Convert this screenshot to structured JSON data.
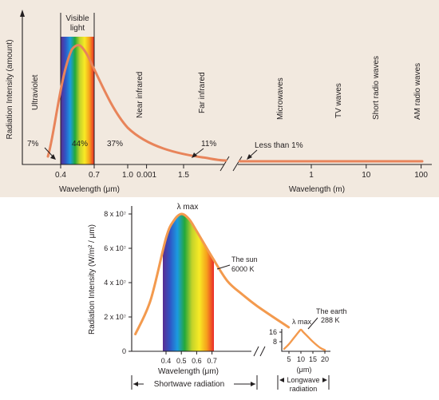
{
  "colors": {
    "background_top": "#f2e9df",
    "curve": "#e8845a",
    "curve_lower": "#f39a4e",
    "axis": "#231f20",
    "spectrum": [
      "#5a2d91",
      "#2f56c6",
      "#1b9be0",
      "#23a83a",
      "#c3d32a",
      "#f8ea25",
      "#f6a21b",
      "#ea2a2a"
    ]
  },
  "top_chart": {
    "ylabel": "Radiation Intensity (amount)",
    "xlabel_left": "Wavelength (μm)",
    "xlabel_right": "Wavelength (m)",
    "visible_label": [
      "Visible",
      "light"
    ],
    "ticks_left": [
      0.4,
      0.7,
      1.0,
      1.5
    ],
    "tick_labels_left": [
      "0.4",
      "0.7",
      "1.0",
      "1.5"
    ],
    "ticks_right": [
      0.001,
      1,
      10,
      100
    ],
    "tick_labels_right": [
      "0.001",
      "1",
      "10",
      "100"
    ],
    "bands": [
      "Ultraviolet",
      "Near infrared",
      "Far infrared",
      "Microwaves",
      "TV waves",
      "Short radio waves",
      "AM radio waves"
    ],
    "percentages": [
      {
        "band": "Ultraviolet",
        "label": "7%"
      },
      {
        "band": "Visible",
        "label": "44%"
      },
      {
        "band": "Near infrared",
        "label": "37%"
      },
      {
        "band": "Far infrared",
        "label": "11%"
      },
      {
        "band": "Microwaves",
        "label": "Less than 1%"
      }
    ]
  },
  "chart_data": [
    {
      "type": "line",
      "ylabel": "Radiation Intensity (W/m² / μm)",
      "xlabel": "Wavelength (μm)",
      "x": [
        0.2,
        0.3,
        0.4,
        0.45,
        0.5,
        0.55,
        0.6,
        0.7,
        0.8,
        0.9,
        1.0,
        1.2
      ],
      "y": [
        10000000.0,
        30000000.0,
        66000000.0,
        76000000.0,
        80000000.0,
        77000000.0,
        70000000.0,
        55000000.0,
        41000000.0,
        33000000.0,
        26000000.0,
        14000000.0
      ],
      "ylim": [
        0,
        80000000.0
      ],
      "yticks": [
        "0",
        "2 x 10⁷",
        "4 x 10⁷",
        "6 x 10⁷",
        "8 x 10⁷"
      ],
      "xticks": [
        "0.4",
        "0.5",
        "0.6",
        "0.7"
      ],
      "annotations": {
        "peak": "λ max",
        "source": [
          "The sun",
          "6000 K"
        ]
      },
      "span_label": "Shortwave radiation"
    },
    {
      "type": "line",
      "xlabel": "(μm)",
      "x": [
        3,
        5,
        7,
        9,
        10,
        11,
        13,
        15,
        18,
        20
      ],
      "y": [
        2,
        6,
        11,
        16,
        18,
        16,
        12,
        8,
        3,
        1
      ],
      "ylim": [
        0,
        20
      ],
      "yticks": [
        "8",
        "16"
      ],
      "xticks": [
        "5",
        "10",
        "15",
        "20"
      ],
      "annotations": {
        "peak": "λ max",
        "source": [
          "The earth",
          "288 K"
        ]
      },
      "span_label": [
        "Longwave",
        "radiation"
      ]
    }
  ]
}
